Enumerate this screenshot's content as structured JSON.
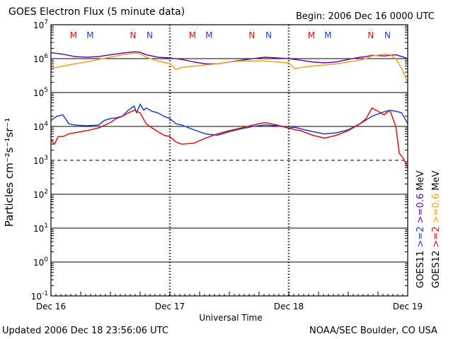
{
  "title": "GOES Electron Flux (5 minute data)",
  "begin": "Begin: 2006 Dec 16 0000 UTC",
  "updated": "Updated 2006 Dec 18 23:56:06 UTC",
  "credit": "NOAA/SEC Boulder, CO USA",
  "colors": {
    "goes11_06": "#6a0dad",
    "goes12_06": "#f0a020",
    "goes11_2": "#1f3fd0",
    "goes12_2": "#e01010"
  },
  "chart_data": {
    "type": "line",
    "title": "GOES Electron Flux (5 minute data)",
    "xlabel": "Universal Time",
    "ylabel": "Particles cm⁻²s⁻¹sr⁻¹",
    "yscale": "log",
    "ylim": [
      0.1,
      10000000
    ],
    "xlim": [
      "Dec 16",
      "Dec 19"
    ],
    "x_tick_labels": [
      "Dec 16",
      "Dec 17",
      "Dec 18",
      "Dec 19"
    ],
    "y_tick_labels": [
      {
        "base": "10",
        "exp": "-1"
      },
      {
        "base": "10",
        "exp": "0"
      },
      {
        "base": "10",
        "exp": "1"
      },
      {
        "base": "10",
        "exp": "2"
      },
      {
        "base": "10",
        "exp": "3"
      },
      {
        "base": "10",
        "exp": "4"
      },
      {
        "base": "10",
        "exp": "5"
      },
      {
        "base": "10",
        "exp": "6"
      },
      {
        "base": "10",
        "exp": "7"
      }
    ],
    "threshold": 1000,
    "mn_markers": [
      {
        "label": "M",
        "day": 0.19,
        "color": "#e01010"
      },
      {
        "label": "M",
        "day": 0.33,
        "color": "#1f3fd0"
      },
      {
        "label": "N",
        "day": 0.69,
        "color": "#e01010"
      },
      {
        "label": "N",
        "day": 0.83,
        "color": "#1f3fd0"
      },
      {
        "label": "M",
        "day": 1.19,
        "color": "#e01010"
      },
      {
        "label": "M",
        "day": 1.33,
        "color": "#1f3fd0"
      },
      {
        "label": "N",
        "day": 1.69,
        "color": "#e01010"
      },
      {
        "label": "N",
        "day": 1.83,
        "color": "#1f3fd0"
      },
      {
        "label": "M",
        "day": 2.19,
        "color": "#e01010"
      },
      {
        "label": "M",
        "day": 2.33,
        "color": "#1f3fd0"
      },
      {
        "label": "N",
        "day": 2.69,
        "color": "#e01010"
      },
      {
        "label": "N",
        "day": 2.83,
        "color": "#1f3fd0"
      }
    ],
    "legend": [
      {
        "text": "GOES11",
        "color": "#000000"
      },
      {
        "text": ">=2",
        "color": "#1f3fd0"
      },
      {
        "text": ">=0.6",
        "color": "#6a0dad"
      },
      {
        "text": "MeV",
        "color": "#000000"
      },
      {
        "text": "GOES12",
        "color": "#000000"
      },
      {
        "text": ">=2",
        "color": "#e01010"
      },
      {
        "text": ">=0.6",
        "color": "#f0a020"
      },
      {
        "text": "MeV",
        "color": "#000000"
      }
    ],
    "series": [
      {
        "key": "goes11_06",
        "color": "#6a0dad",
        "x": [
          0,
          0.1,
          0.2,
          0.3,
          0.4,
          0.5,
          0.6,
          0.7,
          0.75,
          0.8,
          0.9,
          1.0,
          1.1,
          1.2,
          1.3,
          1.4,
          1.5,
          1.6,
          1.7,
          1.8,
          1.9,
          2.0,
          2.1,
          2.2,
          2.3,
          2.4,
          2.5,
          2.6,
          2.65,
          2.7,
          2.8,
          2.9,
          2.95,
          3.0
        ],
        "y": [
          1500000,
          1350000,
          1150000,
          1100000,
          1150000,
          1300000,
          1450000,
          1600000,
          1550000,
          1300000,
          1100000,
          1050000,
          950000,
          800000,
          700000,
          700000,
          800000,
          900000,
          1000000,
          1100000,
          1050000,
          1000000,
          900000,
          800000,
          750000,
          800000,
          950000,
          1100000,
          1150000,
          1250000,
          1200000,
          1300000,
          1150000,
          1000000
        ]
      },
      {
        "key": "goes12_06",
        "color": "#f0a020",
        "x": [
          0,
          0.05,
          0.1,
          0.2,
          0.3,
          0.4,
          0.5,
          0.6,
          0.7,
          0.75,
          0.8,
          0.9,
          1.0,
          1.05,
          1.1,
          1.2,
          1.3,
          1.4,
          1.5,
          1.6,
          1.7,
          1.8,
          1.9,
          2.0,
          2.05,
          2.1,
          2.2,
          2.3,
          2.4,
          2.5,
          2.6,
          2.65,
          2.7,
          2.8,
          2.85,
          2.9,
          2.95,
          3.0
        ],
        "y": [
          550000,
          550000,
          600000,
          700000,
          800000,
          950000,
          1100000,
          1300000,
          1450000,
          1400000,
          1100000,
          850000,
          700000,
          480000,
          550000,
          600000,
          650000,
          700000,
          800000,
          850000,
          850000,
          850000,
          800000,
          750000,
          500000,
          550000,
          600000,
          650000,
          700000,
          800000,
          900000,
          1000000,
          1200000,
          1350000,
          1300000,
          1000000,
          500000,
          200000
        ]
      },
      {
        "key": "goes11_2",
        "color": "#1f3fd0",
        "x": [
          0,
          0.05,
          0.1,
          0.15,
          0.2,
          0.3,
          0.4,
          0.45,
          0.5,
          0.55,
          0.6,
          0.65,
          0.7,
          0.72,
          0.75,
          0.78,
          0.8,
          0.85,
          0.9,
          0.95,
          1.0,
          1.05,
          1.1,
          1.2,
          1.3,
          1.4,
          1.5,
          1.6,
          1.7,
          1.8,
          1.9,
          2.0,
          2.05,
          2.1,
          2.2,
          2.3,
          2.4,
          2.5,
          2.6,
          2.7,
          2.8,
          2.85,
          2.9,
          2.95,
          3.0
        ],
        "y": [
          15000,
          20000,
          22000,
          12000,
          11000,
          10500,
          11000,
          15000,
          17000,
          18000,
          20000,
          30000,
          40000,
          25000,
          45000,
          30000,
          35000,
          28000,
          25000,
          20000,
          17000,
          12000,
          11000,
          8000,
          6000,
          5500,
          7000,
          8500,
          10000,
          11000,
          10500,
          9000,
          9500,
          8500,
          7000,
          6000,
          6500,
          8000,
          12000,
          20000,
          27000,
          30000,
          28000,
          25000,
          12000
        ]
      },
      {
        "key": "goes12_2",
        "color": "#e01010",
        "x": [
          0,
          0.03,
          0.06,
          0.1,
          0.15,
          0.2,
          0.3,
          0.4,
          0.5,
          0.55,
          0.6,
          0.65,
          0.7,
          0.75,
          0.8,
          0.85,
          0.9,
          0.95,
          1.0,
          1.05,
          1.1,
          1.2,
          1.3,
          1.4,
          1.5,
          1.6,
          1.7,
          1.8,
          1.9,
          2.0,
          2.05,
          2.1,
          2.2,
          2.3,
          2.4,
          2.5,
          2.6,
          2.65,
          2.7,
          2.75,
          2.8,
          2.85,
          2.9,
          2.93,
          2.96,
          3.0
        ],
        "y": [
          4000,
          3000,
          5000,
          5000,
          6000,
          6500,
          7500,
          9000,
          13000,
          17000,
          20000,
          25000,
          30000,
          25000,
          12000,
          9000,
          7000,
          5500,
          5000,
          3500,
          3000,
          3200,
          4500,
          6000,
          7500,
          9000,
          11000,
          13000,
          11000,
          9000,
          8000,
          7500,
          5500,
          4500,
          5500,
          7500,
          12000,
          17000,
          35000,
          28000,
          22000,
          30000,
          10000,
          1600,
          1200,
          600
        ]
      }
    ]
  }
}
